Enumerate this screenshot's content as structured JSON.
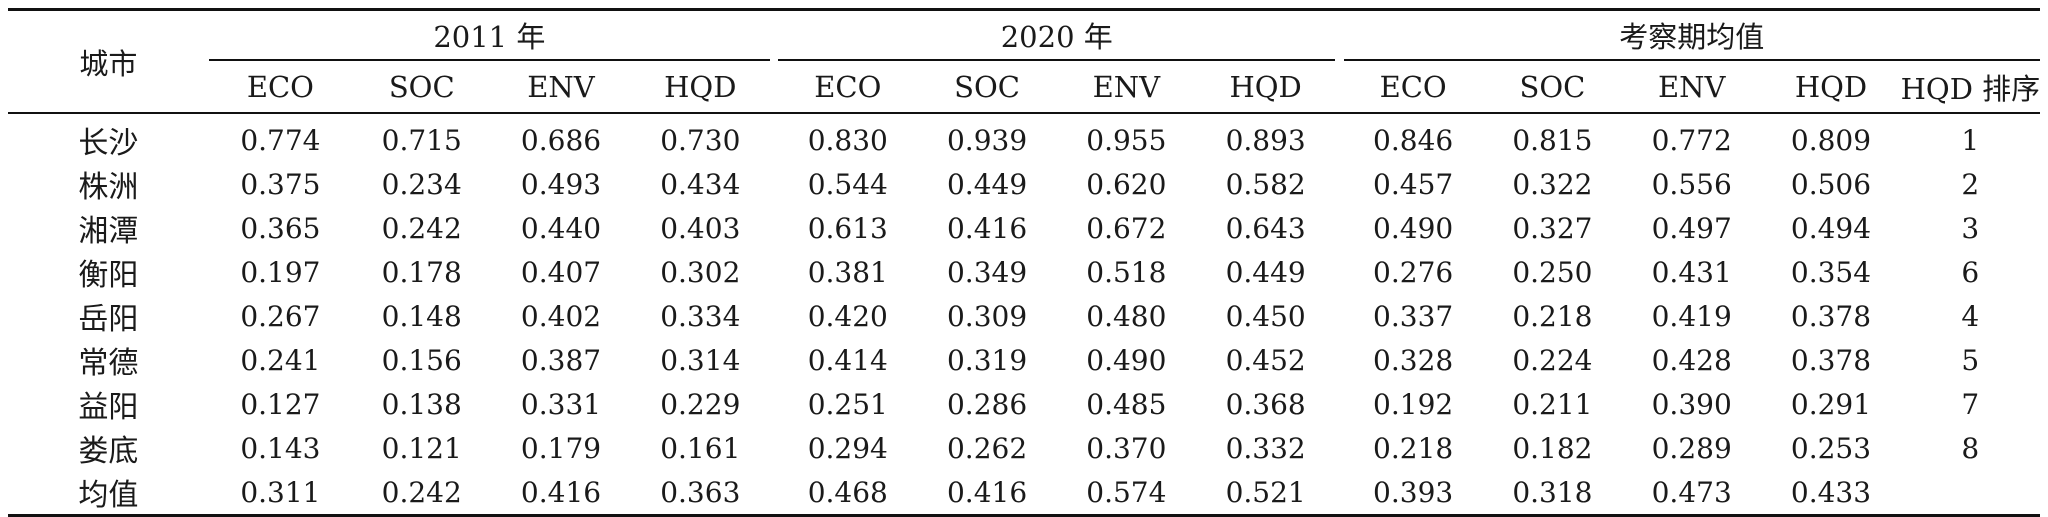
{
  "header": {
    "city_label": "城市",
    "groups": [
      "2011 年",
      "2020 年",
      "考察期均值"
    ],
    "sub_columns": [
      "ECO",
      "SOC",
      "ENV",
      "HQD"
    ],
    "rank_label": "HQD 排序"
  },
  "rows": [
    {
      "city": "长沙",
      "values": [
        "0.774",
        "0.715",
        "0.686",
        "0.730",
        "0.830",
        "0.939",
        "0.955",
        "0.893",
        "0.846",
        "0.815",
        "0.772",
        "0.809"
      ],
      "rank": "1"
    },
    {
      "city": "株洲",
      "values": [
        "0.375",
        "0.234",
        "0.493",
        "0.434",
        "0.544",
        "0.449",
        "0.620",
        "0.582",
        "0.457",
        "0.322",
        "0.556",
        "0.506"
      ],
      "rank": "2"
    },
    {
      "city": "湘潭",
      "values": [
        "0.365",
        "0.242",
        "0.440",
        "0.403",
        "0.613",
        "0.416",
        "0.672",
        "0.643",
        "0.490",
        "0.327",
        "0.497",
        "0.494"
      ],
      "rank": "3"
    },
    {
      "city": "衡阳",
      "values": [
        "0.197",
        "0.178",
        "0.407",
        "0.302",
        "0.381",
        "0.349",
        "0.518",
        "0.449",
        "0.276",
        "0.250",
        "0.431",
        "0.354"
      ],
      "rank": "6"
    },
    {
      "city": "岳阳",
      "values": [
        "0.267",
        "0.148",
        "0.402",
        "0.334",
        "0.420",
        "0.309",
        "0.480",
        "0.450",
        "0.337",
        "0.218",
        "0.419",
        "0.378"
      ],
      "rank": "4"
    },
    {
      "city": "常德",
      "values": [
        "0.241",
        "0.156",
        "0.387",
        "0.314",
        "0.414",
        "0.319",
        "0.490",
        "0.452",
        "0.328",
        "0.224",
        "0.428",
        "0.378"
      ],
      "rank": "5"
    },
    {
      "city": "益阳",
      "values": [
        "0.127",
        "0.138",
        "0.331",
        "0.229",
        "0.251",
        "0.286",
        "0.485",
        "0.368",
        "0.192",
        "0.211",
        "0.390",
        "0.291"
      ],
      "rank": "7"
    },
    {
      "city": "娄底",
      "values": [
        "0.143",
        "0.121",
        "0.179",
        "0.161",
        "0.294",
        "0.262",
        "0.370",
        "0.332",
        "0.218",
        "0.182",
        "0.289",
        "0.253"
      ],
      "rank": "8"
    },
    {
      "city": "均值",
      "values": [
        "0.311",
        "0.242",
        "0.416",
        "0.363",
        "0.468",
        "0.416",
        "0.574",
        "0.521",
        "0.393",
        "0.318",
        "0.473",
        "0.433"
      ],
      "rank": ""
    }
  ]
}
